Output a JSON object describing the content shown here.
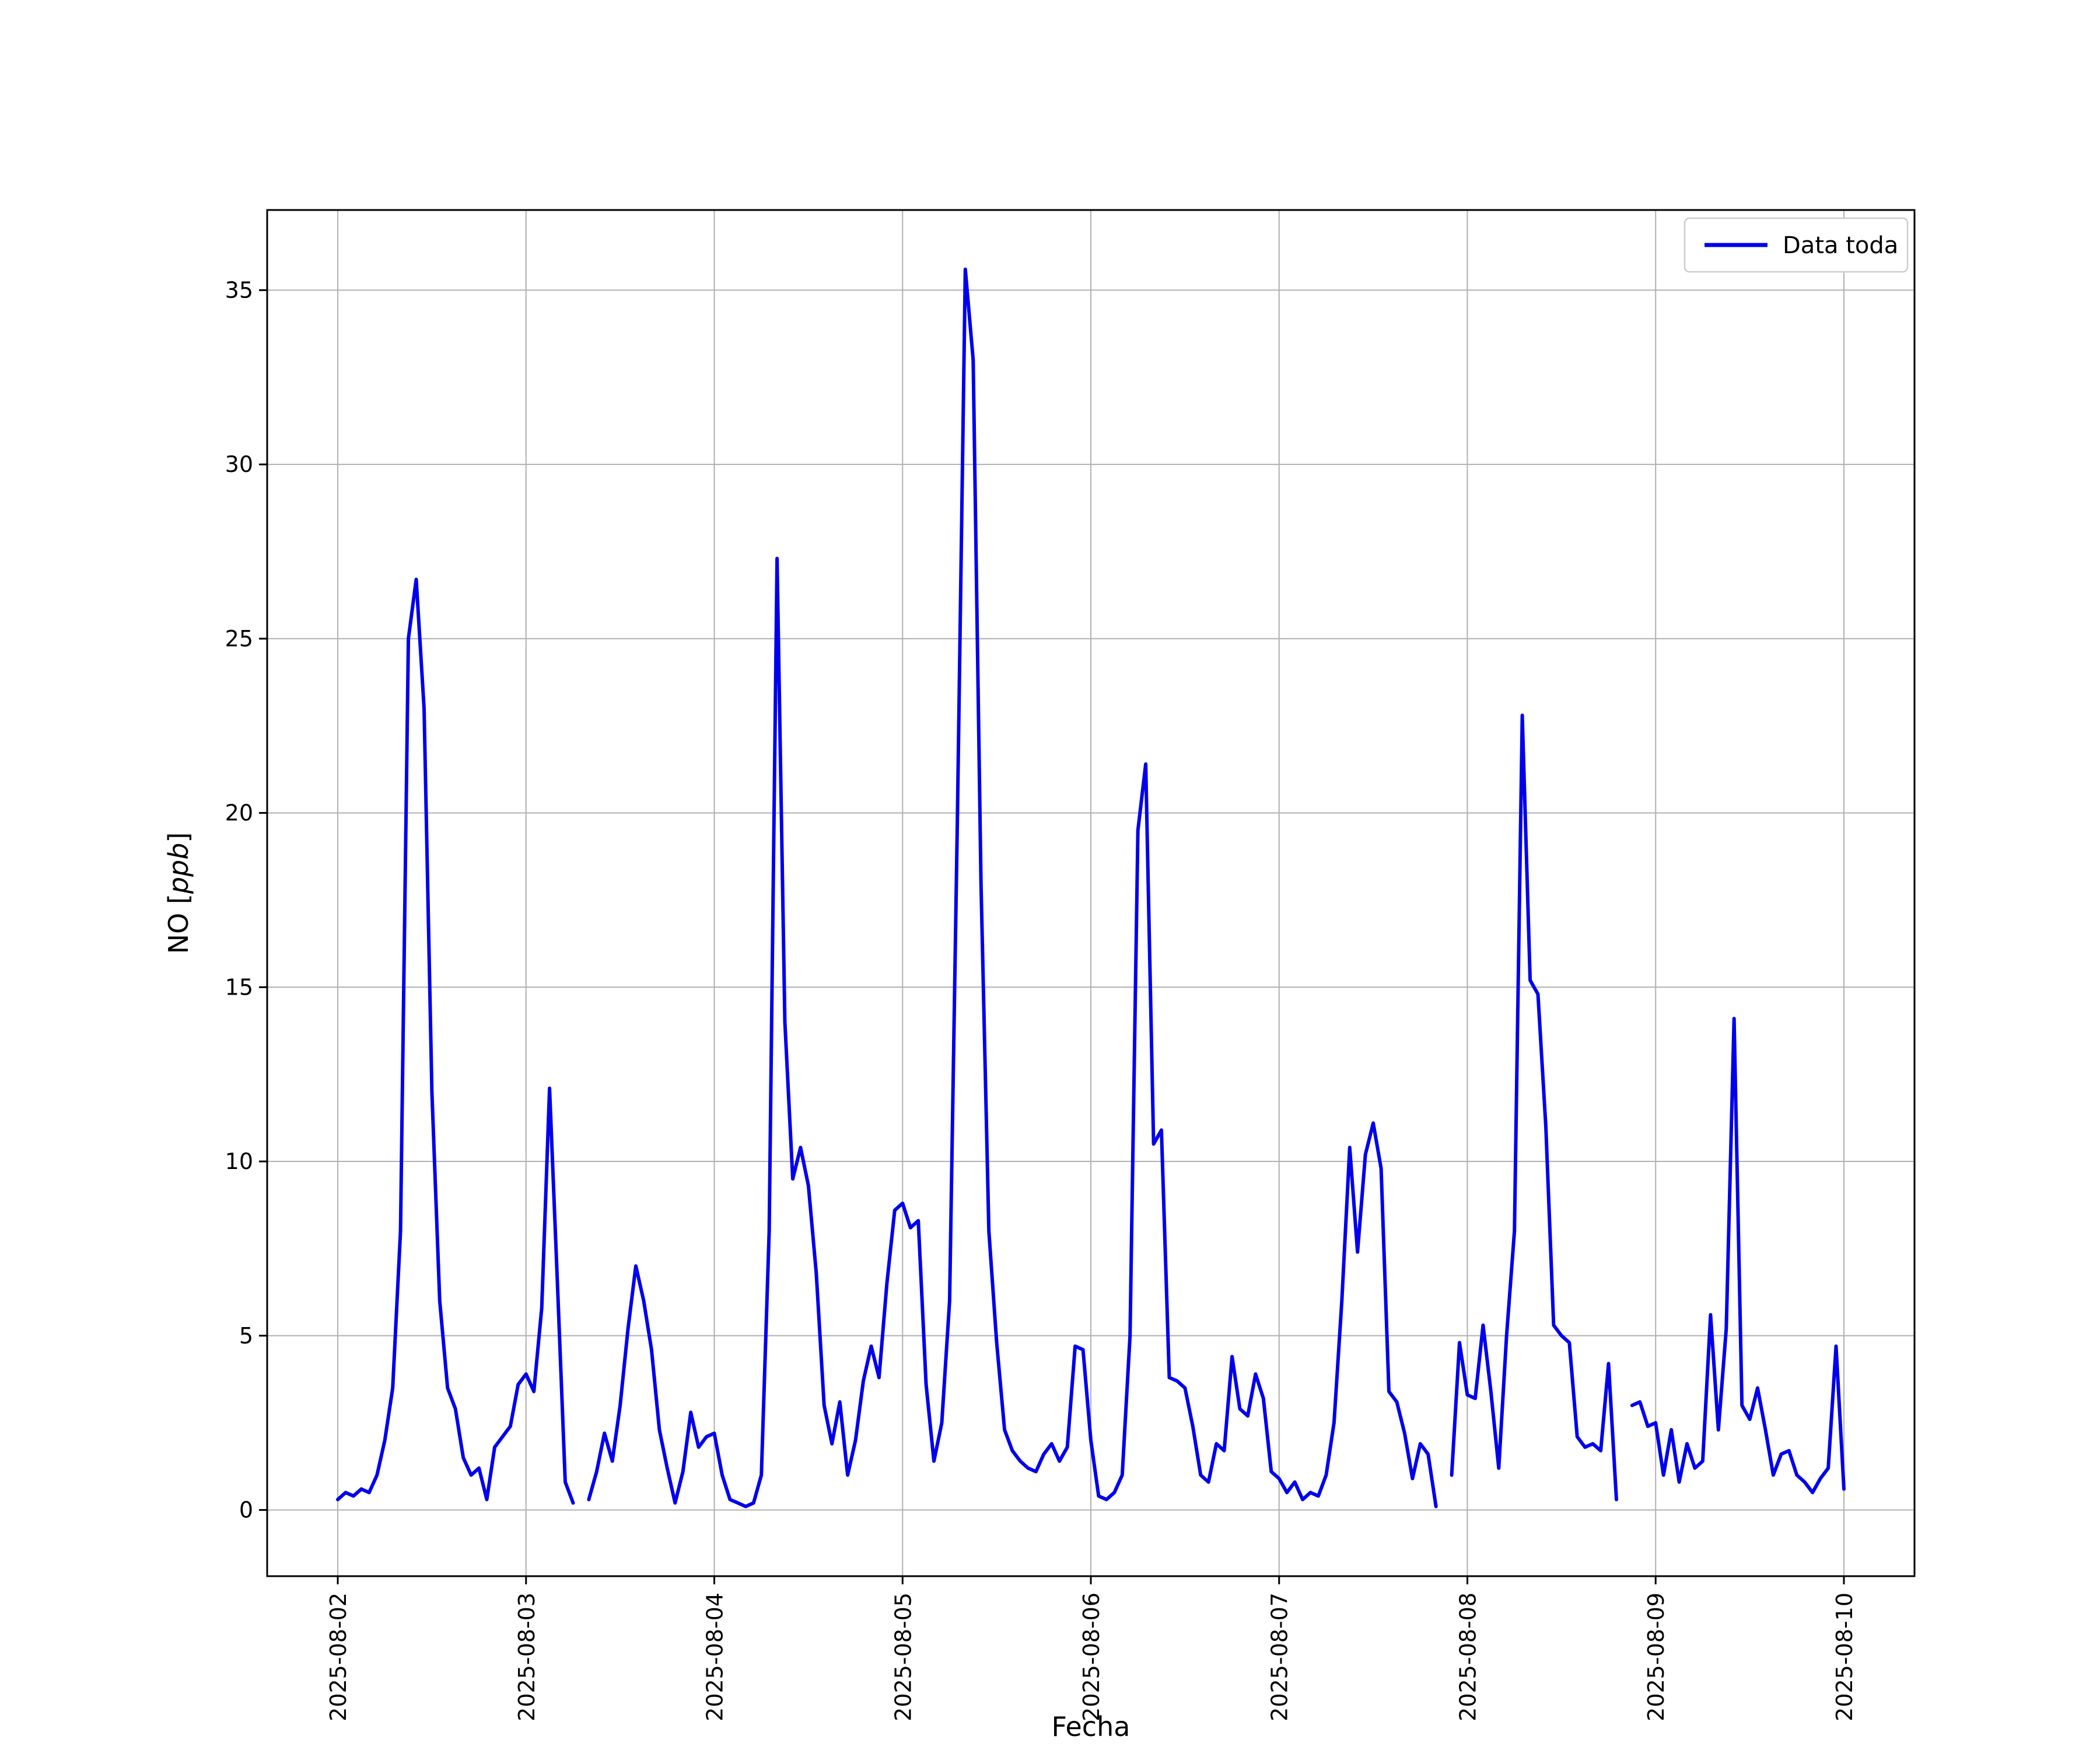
{
  "figure": {
    "background": "#ffffff"
  },
  "chart_data": {
    "type": "line",
    "title": "",
    "xlabel": "Fecha",
    "ylabel": "NO [ppb]",
    "ylabel_italic_part": "ppb",
    "grid": true,
    "grid_color": "#b0b0b0",
    "line_color": "#0000ee",
    "x_tick_labels": [
      "2025-08-02",
      "2025-08-03",
      "2025-08-04",
      "2025-08-05",
      "2025-08-06",
      "2025-08-07",
      "2025-08-08",
      "2025-08-09",
      "2025-08-10"
    ],
    "x_tick_hours": [
      0,
      24,
      48,
      72,
      96,
      120,
      144,
      168,
      192
    ],
    "yticks": [
      0,
      5,
      10,
      15,
      20,
      25,
      30,
      35
    ],
    "ylim": [
      -1.9,
      37.3
    ],
    "xlim_hours": [
      -9,
      201
    ],
    "legend": {
      "position": "upper right",
      "entries": [
        "Data toda"
      ]
    },
    "series": [
      {
        "name": "Data toda",
        "color": "#0000ee",
        "x_start_hour": 0,
        "x_step_hours": 1,
        "values": [
          0.3,
          0.5,
          0.4,
          0.6,
          0.5,
          1.0,
          2.0,
          3.5,
          8.0,
          25.0,
          26.7,
          23.0,
          12.0,
          6.0,
          3.5,
          2.9,
          1.5,
          1.0,
          1.2,
          0.3,
          1.8,
          2.1,
          2.4,
          3.6,
          3.9,
          3.4,
          5.8,
          12.1,
          6.5,
          0.8,
          0.2,
          null,
          0.3,
          1.1,
          2.2,
          1.4,
          3.0,
          5.2,
          7.0,
          6.0,
          4.6,
          2.3,
          1.2,
          0.2,
          1.1,
          2.8,
          1.8,
          2.1,
          2.2,
          1.0,
          0.3,
          0.2,
          0.1,
          0.2,
          1.0,
          8.0,
          27.3,
          14.0,
          9.5,
          10.4,
          9.3,
          6.8,
          3.0,
          1.9,
          3.1,
          1.0,
          2.0,
          3.7,
          4.7,
          3.8,
          6.5,
          8.6,
          8.8,
          8.1,
          8.3,
          3.6,
          1.4,
          2.5,
          6.0,
          20.0,
          35.6,
          33.0,
          18.0,
          8.0,
          4.8,
          2.3,
          1.7,
          1.4,
          1.2,
          1.1,
          1.6,
          1.9,
          1.4,
          1.8,
          4.7,
          4.6,
          2.0,
          0.4,
          0.3,
          0.5,
          1.0,
          5.0,
          19.5,
          21.4,
          10.5,
          10.9,
          3.8,
          3.7,
          3.5,
          2.4,
          1.0,
          0.8,
          1.9,
          1.7,
          4.4,
          2.9,
          2.7,
          3.9,
          3.2,
          1.1,
          0.9,
          0.5,
          0.8,
          0.3,
          0.5,
          0.4,
          1.0,
          2.5,
          6.0,
          10.4,
          7.4,
          10.2,
          11.1,
          9.8,
          3.4,
          3.1,
          2.2,
          0.9,
          1.9,
          1.6,
          0.1,
          null,
          1.0,
          4.8,
          3.3,
          3.2,
          5.3,
          3.4,
          1.2,
          5.0,
          8.0,
          22.8,
          15.2,
          14.8,
          11.0,
          5.3,
          5.0,
          4.8,
          2.1,
          1.8,
          1.9,
          1.7,
          4.2,
          0.3,
          null,
          3.0,
          3.1,
          2.4,
          2.5,
          1.0,
          2.3,
          0.8,
          1.9,
          1.2,
          1.4,
          5.6,
          2.3,
          5.2,
          14.1,
          3.0,
          2.6,
          3.5,
          2.3,
          1.0,
          1.6,
          1.7,
          1.0,
          0.8,
          0.5,
          0.9,
          1.2,
          4.7,
          0.6
        ]
      }
    ]
  }
}
